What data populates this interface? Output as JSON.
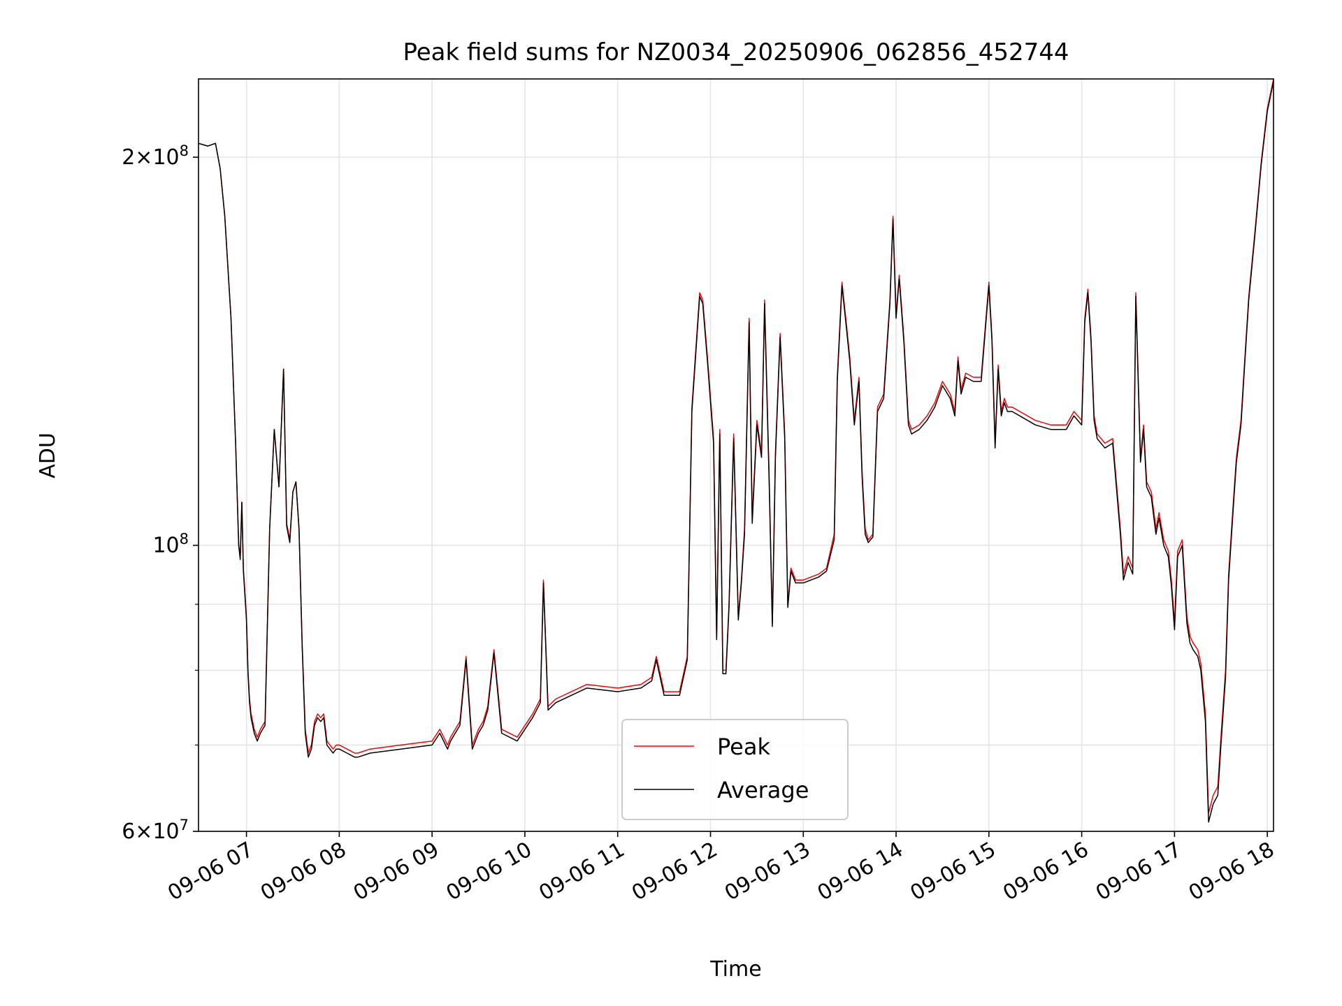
{
  "chart_data": {
    "type": "line",
    "title": "Peak field sums for NZ0034_20250906_062856_452744",
    "xlabel": "Time",
    "ylabel": "ADU",
    "yscale": "log",
    "ylim": [
      60000000,
      230000000
    ],
    "xlim": [
      "09-06 06:29",
      "09-06 18:04"
    ],
    "grid": true,
    "legend_position": "lower-center",
    "x_ticks": [
      "09-06 07",
      "09-06 08",
      "09-06 09",
      "09-06 10",
      "09-06 11",
      "09-06 12",
      "09-06 13",
      "09-06 14",
      "09-06 15",
      "09-06 16",
      "09-06 17",
      "09-06 18"
    ],
    "x_tick_times": [
      "07:00",
      "08:00",
      "09:00",
      "10:00",
      "11:00",
      "12:00",
      "13:00",
      "14:00",
      "15:00",
      "16:00",
      "17:00",
      "18:00"
    ],
    "y_ticks": [
      {
        "value": 200000000,
        "mantissa": "2",
        "exponent": "8"
      },
      {
        "value": 100000000,
        "mantissa": "",
        "exponent": "8"
      },
      {
        "value": 60000000,
        "mantissa": "6",
        "exponent": "7"
      }
    ],
    "y_minor_ticks": [
      70000000,
      80000000,
      90000000
    ],
    "x": [
      "06:29",
      "06:35",
      "06:40",
      "06:43",
      "06:46",
      "06:50",
      "06:53",
      "06:55",
      "06:56",
      "06:57",
      "06:58",
      "07:00",
      "07:01",
      "07:02",
      "07:03",
      "07:05",
      "07:07",
      "07:09",
      "07:12",
      "07:15",
      "07:18",
      "07:21",
      "07:24",
      "07:26",
      "07:28",
      "07:30",
      "07:32",
      "07:34",
      "07:36",
      "07:38",
      "07:40",
      "07:42",
      "07:44",
      "07:46",
      "07:48",
      "07:50",
      "07:52",
      "07:54",
      "07:56",
      "07:58",
      "08:00",
      "08:05",
      "08:10",
      "08:12",
      "08:20",
      "08:40",
      "09:00",
      "09:05",
      "09:10",
      "09:12",
      "09:15",
      "09:18",
      "09:22",
      "09:26",
      "09:30",
      "09:33",
      "09:36",
      "09:40",
      "09:45",
      "09:55",
      "10:05",
      "10:10",
      "10:12",
      "10:15",
      "10:20",
      "10:40",
      "11:00",
      "11:15",
      "11:22",
      "11:25",
      "11:30",
      "11:40",
      "11:45",
      "11:48",
      "11:53",
      "11:55",
      "11:58",
      "12:02",
      "12:04",
      "12:06",
      "12:08",
      "12:10",
      "12:12",
      "12:15",
      "12:18",
      "12:20",
      "12:22",
      "12:25",
      "12:27",
      "12:30",
      "12:33",
      "12:35",
      "12:38",
      "12:40",
      "12:42",
      "12:45",
      "12:48",
      "12:50",
      "12:52",
      "12:55",
      "13:00",
      "13:10",
      "13:15",
      "13:20",
      "13:22",
      "13:25",
      "13:28",
      "13:30",
      "13:33",
      "13:36",
      "13:38",
      "13:40",
      "13:42",
      "13:45",
      "13:48",
      "13:52",
      "13:56",
      "13:58",
      "14:00",
      "14:02",
      "14:05",
      "14:08",
      "14:10",
      "14:15",
      "14:20",
      "14:25",
      "14:30",
      "14:35",
      "14:38",
      "14:40",
      "14:42",
      "14:45",
      "14:50",
      "14:55",
      "15:00",
      "15:02",
      "15:04",
      "15:06",
      "15:08",
      "15:10",
      "15:12",
      "15:15",
      "15:20",
      "15:30",
      "15:40",
      "15:50",
      "15:55",
      "16:00",
      "16:02",
      "16:04",
      "16:06",
      "16:08",
      "16:10",
      "16:15",
      "16:20",
      "16:25",
      "16:27",
      "16:30",
      "16:33",
      "16:35",
      "16:38",
      "16:40",
      "16:42",
      "16:45",
      "16:48",
      "16:50",
      "16:53",
      "16:56",
      "16:58",
      "17:00",
      "17:02",
      "17:05",
      "17:08",
      "17:10",
      "17:12",
      "17:15",
      "17:17",
      "17:20",
      "17:22",
      "17:25",
      "17:28",
      "17:30",
      "17:33",
      "17:35",
      "17:38",
      "17:40",
      "17:43",
      "17:45",
      "17:48",
      "17:52",
      "17:56",
      "18:00",
      "18:04"
    ],
    "series": [
      {
        "name": "Peak",
        "color": "#ff0000",
        "values": [
          205000000.0,
          204000000.0,
          205000000.0,
          196000000.0,
          180000000.0,
          150000000.0,
          120000000.0,
          100000000.0,
          98000000.0,
          108000000.0,
          96000000.0,
          88000000.0,
          80000000.0,
          76000000.0,
          74000000.0,
          72000000.0,
          71000000.0,
          72000000.0,
          73000000.0,
          103000000.0,
          123000000.0,
          111000000.0,
          137000000.0,
          104000000.0,
          101000000.0,
          110000000.0,
          112000000.0,
          103000000.0,
          84000000.0,
          72000000.0,
          69000000.0,
          70000000.0,
          73000000.0,
          74000000.0,
          73500000.0,
          74000000.0,
          70500000.0,
          70000000.0,
          69500000.0,
          70000000.0,
          70000000.0,
          69500000.0,
          69000000.0,
          69000000.0,
          69500000.0,
          70000000.0,
          70500000.0,
          72000000.0,
          70000000.0,
          71000000.0,
          72000000.0,
          73000000.0,
          82000000.0,
          70000000.0,
          72000000.0,
          73000000.0,
          75000000.0,
          83000000.0,
          72000000.0,
          71000000.0,
          74000000.0,
          76000000.0,
          94000000.0,
          75000000.0,
          76000000.0,
          78000000.0,
          77500000.0,
          78000000.0,
          79000000.0,
          82000000.0,
          77000000.0,
          77000000.0,
          82000000.0,
          128000000.0,
          157000000.0,
          155000000.0,
          140000000.0,
          121000000.0,
          85000000.0,
          123000000.0,
          80000000.0,
          80000000.0,
          90000000.0,
          122000000.0,
          88000000.0,
          94000000.0,
          103000000.0,
          150000000.0,
          105000000.0,
          125000000.0,
          118000000.0,
          155000000.0,
          112000000.0,
          87000000.0,
          118000000.0,
          146000000.0,
          122000000.0,
          90000000.0,
          96000000.0,
          94000000.0,
          94000000.0,
          95000000.0,
          96000000.0,
          102000000.0,
          135000000.0,
          160000000.0,
          148000000.0,
          140000000.0,
          125000000.0,
          135000000.0,
          114000000.0,
          103000000.0,
          101000000.0,
          102000000.0,
          128000000.0,
          131000000.0,
          155000000.0,
          180000000.0,
          151000000.0,
          162000000.0,
          145000000.0,
          125000000.0,
          123000000.0,
          124000000.0,
          126000000.0,
          129000000.0,
          134000000.0,
          131000000.0,
          127000000.0,
          140000000.0,
          132000000.0,
          136000000.0,
          135000000.0,
          135000000.0,
          160000000.0,
          145000000.0,
          120000000.0,
          138000000.0,
          127000000.0,
          130000000.0,
          128000000.0,
          128000000.0,
          127000000.0,
          125000000.0,
          124000000.0,
          124000000.0,
          127000000.0,
          125000000.0,
          150000000.0,
          158000000.0,
          145000000.0,
          126000000.0,
          122000000.0,
          120000000.0,
          121000000.0,
          103000000.0,
          95000000.0,
          98000000.0,
          96000000.0,
          157000000.0,
          117000000.0,
          124000000.0,
          112000000.0,
          110000000.0,
          103000000.0,
          106000000.0,
          101000000.0,
          99000000.0,
          94000000.0,
          87000000.0,
          99000000.0,
          101000000.0,
          88000000.0,
          85000000.0,
          84000000.0,
          83000000.0,
          81000000.0,
          74000000.0,
          62000000.0,
          64000000.0,
          65000000.0,
          71000000.0,
          80000000.0,
          95000000.0,
          108000000.0,
          117000000.0,
          125000000.0,
          137000000.0,
          156000000.0,
          175000000.0,
          198000000.0,
          218000000.0,
          230000000.0
        ]
      },
      {
        "name": "Average",
        "color": "#000000",
        "values": [
          205000000.0,
          204000000.0,
          205000000.0,
          196000000.0,
          180000000.0,
          150000000.0,
          120000000.0,
          100000000.0,
          97500000.0,
          108000000.0,
          95500000.0,
          87500000.0,
          79500000.0,
          75500000.0,
          73500000.0,
          71500000.0,
          70500000.0,
          71500000.0,
          72500000.0,
          103000000.0,
          123000000.0,
          111000000.0,
          137000000.0,
          103500000.0,
          100500000.0,
          110000000.0,
          112000000.0,
          103000000.0,
          83500000.0,
          71500000.0,
          68500000.0,
          69500000.0,
          72500000.0,
          73500000.0,
          73000000.0,
          73500000.0,
          70000000.0,
          69500000.0,
          69000000.0,
          69500000.0,
          69500000.0,
          69000000.0,
          68500000.0,
          68500000.0,
          69000000.0,
          69500000.0,
          70000000.0,
          71500000.0,
          69500000.0,
          70500000.0,
          71500000.0,
          72500000.0,
          81500000.0,
          69500000.0,
          71500000.0,
          72500000.0,
          74500000.0,
          82500000.0,
          71500000.0,
          70500000.0,
          73500000.0,
          75500000.0,
          93500000.0,
          74500000.0,
          75500000.0,
          77500000.0,
          77000000.0,
          77500000.0,
          78500000.0,
          81500000.0,
          76500000.0,
          76500000.0,
          81500000.0,
          127000000.0,
          156000000.0,
          154000000.0,
          139000000.0,
          120000000.0,
          84500000.0,
          122000000.0,
          79500000.0,
          79500000.0,
          89500000.0,
          121000000.0,
          87500000.0,
          93500000.0,
          102000000.0,
          149000000.0,
          104000000.0,
          124000000.0,
          117000000.0,
          154000000.0,
          111000000.0,
          86500000.0,
          117000000.0,
          145000000.0,
          121000000.0,
          89500000.0,
          95500000.0,
          93500000.0,
          93500000.0,
          94500000.0,
          95500000.0,
          101000000.0,
          134000000.0,
          159000000.0,
          147000000.0,
          139000000.0,
          124000000.0,
          134000000.0,
          113000000.0,
          102000000.0,
          100500000.0,
          101500000.0,
          127000000.0,
          130000000.0,
          154000000.0,
          179000000.0,
          150000000.0,
          161000000.0,
          144000000.0,
          124000000.0,
          122000000.0,
          123000000.0,
          125000000.0,
          128000000.0,
          133000000.0,
          130000000.0,
          126000000.0,
          139000000.0,
          131000000.0,
          135000000.0,
          134000000.0,
          134000000.0,
          159000000.0,
          144000000.0,
          119000000.0,
          137000000.0,
          126000000.0,
          129000000.0,
          127000000.0,
          127000000.0,
          126000000.0,
          124000000.0,
          123000000.0,
          123000000.0,
          126000000.0,
          124000000.0,
          149000000.0,
          157000000.0,
          144000000.0,
          125000000.0,
          121000000.0,
          119000000.0,
          120000000.0,
          102000000.0,
          94000000.0,
          97000000.0,
          95000000.0,
          156000000.0,
          116000000.0,
          123000000.0,
          111000000.0,
          109000000.0,
          102000000.0,
          105000000.0,
          100000000.0,
          98000000.0,
          93000000.0,
          86000000.0,
          98000000.0,
          100000000.0,
          87000000.0,
          84000000.0,
          83000000.0,
          82000000.0,
          80000000.0,
          73000000.0,
          61000000.0,
          63000000.0,
          64000000.0,
          70000000.0,
          79000000.0,
          94000000.0,
          107000000.0,
          116000000.0,
          124000000.0,
          136000000.0,
          155000000.0,
          174000000.0,
          197000000.0,
          217000000.0,
          229000000.0
        ]
      }
    ]
  }
}
